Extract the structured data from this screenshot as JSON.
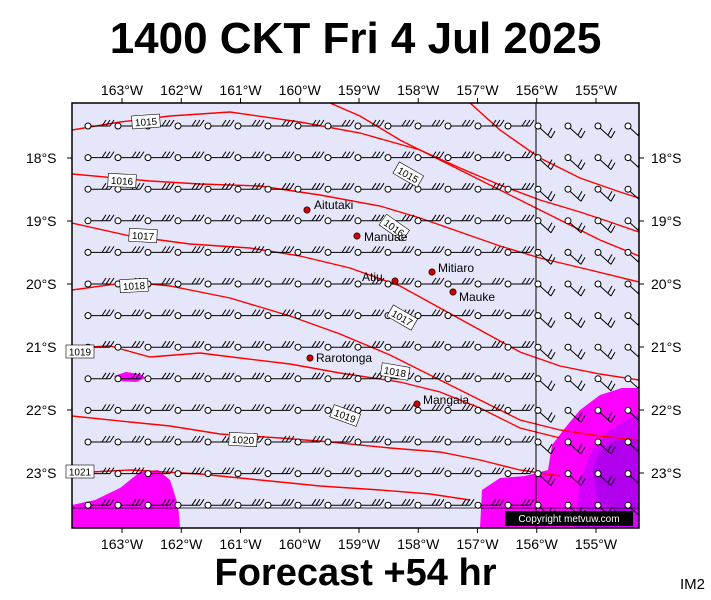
{
  "title": "1400 CKT Fri 4 Jul 2025",
  "forecast_label": "Forecast +54 hr",
  "image_code": "IM2",
  "copyright": "Copyright metvuw.com",
  "map": {
    "lon_ticks": [
      "163°W",
      "162°W",
      "161°W",
      "160°W",
      "159°W",
      "158°W",
      "157°W",
      "156°W",
      "155°W"
    ],
    "lat_ticks": [
      "18°S",
      "19°S",
      "20°S",
      "21°S",
      "22°S",
      "23°S"
    ],
    "isobar_labels": [
      "1015",
      "1016",
      "1017",
      "1018",
      "1019",
      "1020",
      "1021",
      "1019",
      "1018",
      "1017",
      "1016",
      "1015"
    ],
    "islands": [
      "Aitutaki",
      "Manuae",
      "Mitiaro",
      "Atiu",
      "Mauke",
      "Rarotonga",
      "Mangaia"
    ],
    "colors": {
      "background": "#e6e6fa",
      "isobar": "#ff0000",
      "precip_light": "#ff00ff",
      "precip_heavy": "#b000ff",
      "island": "#cc0000"
    }
  }
}
